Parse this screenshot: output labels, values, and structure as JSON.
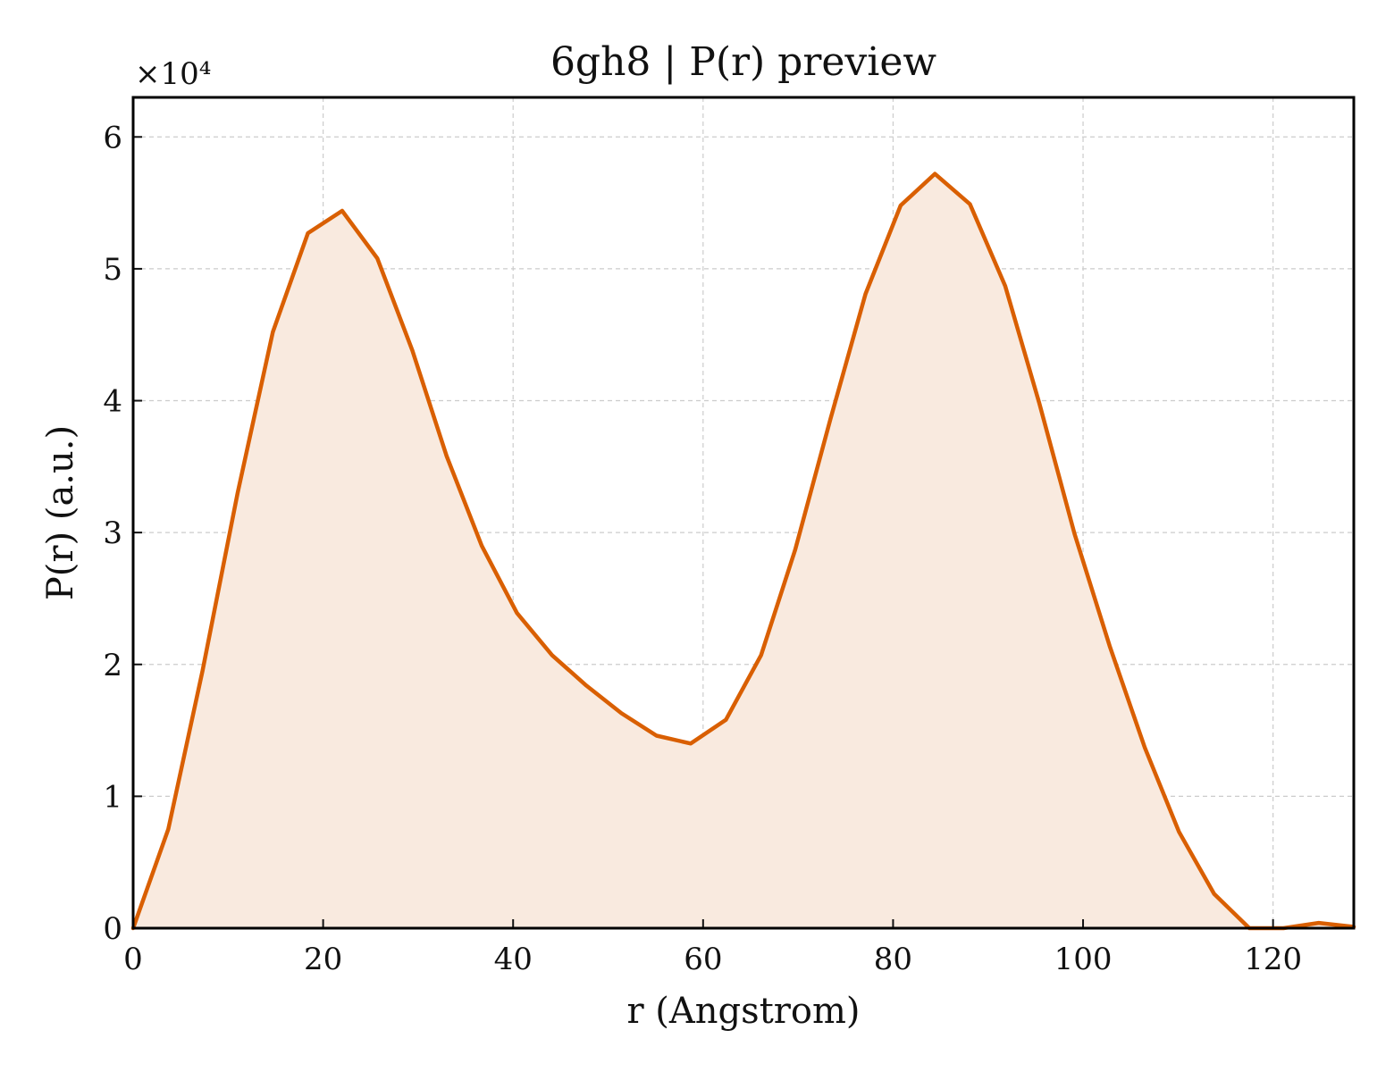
{
  "chart_data": {
    "type": "area",
    "title": "6gh8 | P(r) preview",
    "xlabel": "r (Angstrom)",
    "ylabel": "P(r) (a.u.)",
    "y_multiplier_label": "×10⁴",
    "xlim": [
      0,
      128.5
    ],
    "ylim": [
      0,
      6.3
    ],
    "xticks": [
      0,
      20,
      40,
      60,
      80,
      100,
      120
    ],
    "yticks": [
      0,
      1,
      2,
      3,
      4,
      5,
      6
    ],
    "grid": true,
    "line_color": "#d95f02",
    "fill_color": "#f9eadf",
    "series": [
      {
        "x": [
          0,
          3.7,
          7.3,
          11.0,
          14.7,
          18.4,
          22.0,
          25.7,
          29.4,
          33.0,
          36.7,
          40.4,
          44.1,
          47.7,
          51.4,
          55.1,
          58.7,
          62.4,
          66.1,
          69.7,
          73.4,
          77.1,
          80.8,
          84.4,
          88.1,
          91.8,
          95.4,
          99.1,
          102.8,
          106.5,
          110.1,
          113.8,
          117.5,
          121.1,
          124.8,
          128.5
        ],
        "values": [
          0.0,
          0.75,
          1.95,
          3.3,
          4.52,
          5.27,
          5.44,
          5.08,
          4.38,
          3.58,
          2.9,
          2.39,
          2.07,
          1.84,
          1.63,
          1.46,
          1.4,
          1.58,
          2.07,
          2.87,
          3.86,
          4.81,
          5.48,
          5.72,
          5.49,
          4.87,
          3.98,
          2.99,
          2.14,
          1.37,
          0.73,
          0.26,
          0.0,
          -0.04,
          0.04,
          0.01
        ]
      }
    ]
  }
}
